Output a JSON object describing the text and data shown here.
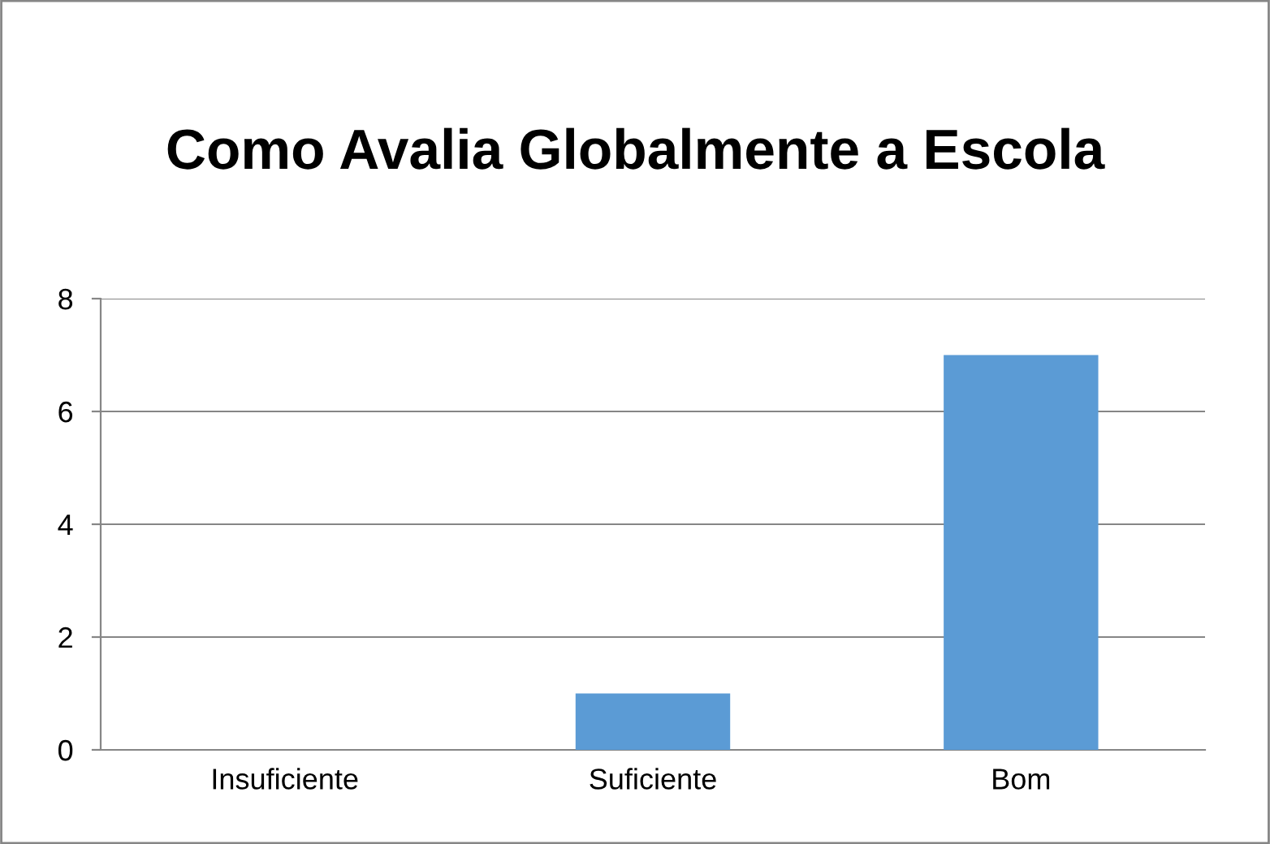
{
  "chart_data": {
    "type": "bar",
    "title": "Como Avalia Globalmente a Escola",
    "categories": [
      "Insuficiente",
      "Suficiente",
      "Bom"
    ],
    "values": [
      0,
      1,
      7
    ],
    "color": "#5b9bd5",
    "ylim": [
      0,
      8
    ],
    "yticks": [
      0,
      2,
      4,
      6,
      8
    ],
    "grid": "y",
    "legend": false
  }
}
